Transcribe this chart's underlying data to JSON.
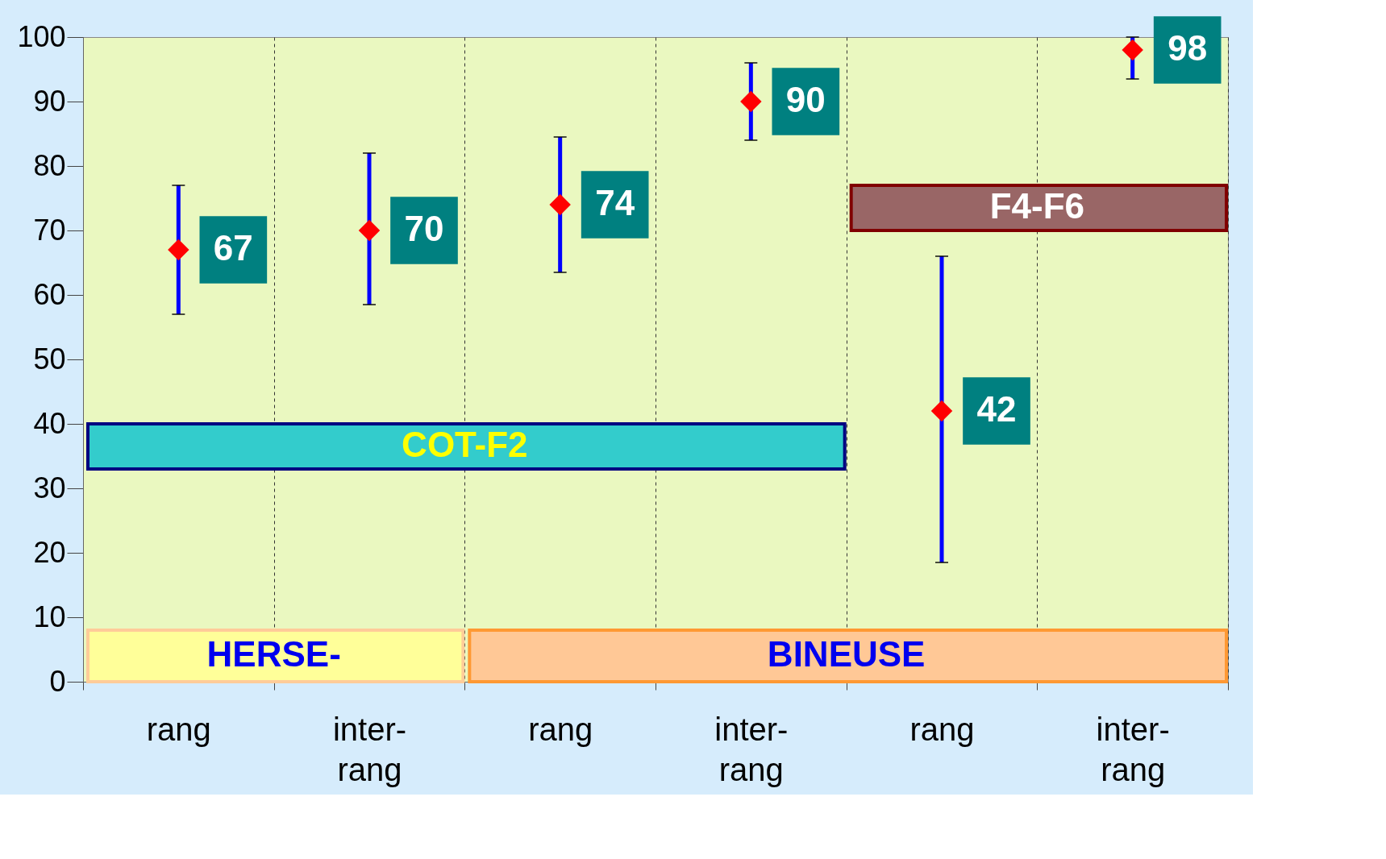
{
  "chart_data": {
    "type": "scatter",
    "categories": [
      "rang",
      "inter-\nrang",
      "rang",
      "inter-\nrang",
      "rang",
      "inter-\nrang"
    ],
    "series": [
      {
        "color": "#ff0000",
        "values": [
          67,
          70,
          74,
          90,
          42,
          98
        ],
        "errors": [
          [
            57,
            77
          ],
          [
            58.5,
            82
          ],
          [
            63.5,
            84.5
          ],
          [
            84,
            96
          ],
          [
            18.5,
            66
          ],
          [
            93.5,
            100
          ]
        ]
      }
    ],
    "marker": "diamond",
    "data_labels": true,
    "ylim": [
      0,
      100
    ],
    "yticks": [
      0,
      10,
      20,
      30,
      40,
      50,
      60,
      70,
      80,
      90,
      100
    ],
    "grid": "x",
    "legend": false,
    "bands": [
      {
        "axis": "y",
        "from": 0,
        "to": 8,
        "label": "HERSE-",
        "color": "#ffff99"
      },
      {
        "axis": "y",
        "from": 0,
        "to": 8,
        "label": "BINEUSE",
        "color": "#ffc896"
      },
      {
        "axis": "y",
        "from": 33,
        "to": 40,
        "label": "COT-F2",
        "color": "#33cccc"
      },
      {
        "axis": "y",
        "from": 70,
        "to": 77,
        "label": "F4-F6",
        "color": "#996666"
      }
    ]
  }
}
